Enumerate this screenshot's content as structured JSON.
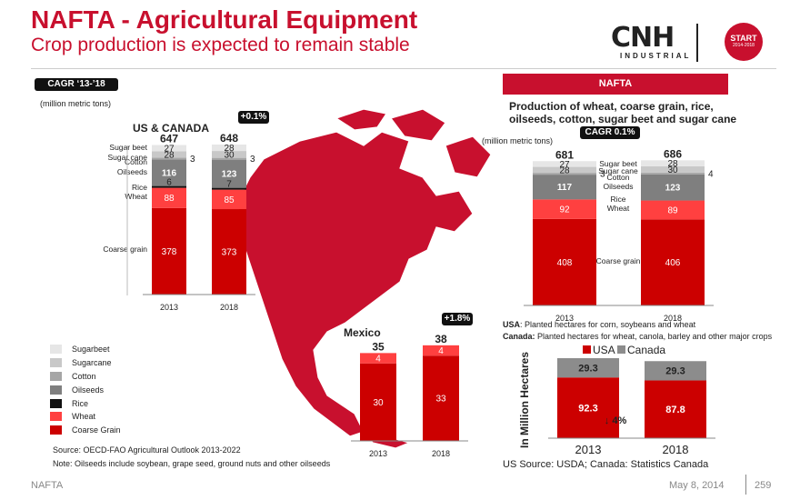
{
  "header": {
    "title": "NAFTA - Agricultural Equipment",
    "subtitle": "Crop production is expected to remain stable",
    "logo_text": "CNH",
    "logo_sub": "INDUSTRIAL",
    "badge_line1": "START",
    "badge_line2": "2014-2018"
  },
  "left": {
    "cagr_pill": "CAGR ‘13-’18",
    "units": "(million metric tons)",
    "growth_pill": "+0.1%",
    "region_title": "US & CANADA"
  },
  "mexico": {
    "growth_pill": "+1.8%",
    "region_title": "Mexico"
  },
  "right": {
    "banner": "NAFTA",
    "title_line1": "Production of wheat, coarse grain, rice,",
    "title_line2": "oilseeds, cotton, sugar beet and sugar cane",
    "cagr_pill": "CAGR 0.1%",
    "units": "(million metric tons)",
    "note_usa_label": "USA",
    "note_usa_text": ":  Planted hectares for corn, soybeans and wheat",
    "note_canada_label": "Canada:",
    "note_canada_text": " Planted hectares for wheat, canola, barley and other major crops",
    "hectares_change": "↓ 4%",
    "hectares_source": "US Source:  USDA; Canada:  Statistics Canada"
  },
  "legend": [
    "Sugarbeet",
    "Sugarcane",
    "Cotton",
    "Oilseeds",
    "Rice",
    "Wheat",
    "Coarse Grain"
  ],
  "sources": {
    "source": "Source: OECD-FAO Agricultural Outlook 2013-2022",
    "note": "Note: Oilseeds include soybean, grape seed, ground nuts and other oilseeds"
  },
  "footer": {
    "left": "NAFTA",
    "date": "May 8, 2014",
    "page": "259"
  },
  "colors": {
    "brand_red": "#c8102e",
    "sugarbeet": "#e6e6e6",
    "sugarcane": "#c8c8c8",
    "cotton": "#a6a6a6",
    "oilseeds": "#7f7f7f",
    "rice": "#111111",
    "wheat": "#ff4040",
    "coarse_grain": "#cc0000",
    "usa": "#cc0000",
    "canada": "#8c8c8c"
  },
  "chart_data": [
    {
      "type": "bar",
      "stacked": true,
      "name": "US & CANADA",
      "categories": [
        "2013",
        "2018"
      ],
      "totals": [
        647,
        648
      ],
      "series": [
        {
          "name": "Coarse grain",
          "values": [
            378,
            373
          ]
        },
        {
          "name": "Wheat",
          "values": [
            88,
            85
          ]
        },
        {
          "name": "Rice",
          "values": [
            6,
            7
          ]
        },
        {
          "name": "Oilseeds",
          "values": [
            116,
            123
          ]
        },
        {
          "name": "Cotton",
          "values": [
            3,
            3
          ]
        },
        {
          "name": "Sugar cane",
          "values": [
            28,
            30
          ]
        },
        {
          "name": "Sugar beet",
          "values": [
            27,
            28
          ]
        }
      ]
    },
    {
      "type": "bar",
      "stacked": true,
      "name": "Mexico",
      "categories": [
        "2013",
        "2018"
      ],
      "totals": [
        35,
        38
      ],
      "series": [
        {
          "name": "Coarse grain",
          "values": [
            30,
            33
          ]
        },
        {
          "name": "Wheat",
          "values": [
            4,
            4
          ]
        }
      ]
    },
    {
      "type": "bar",
      "stacked": true,
      "name": "NAFTA",
      "categories": [
        "2013",
        "2018"
      ],
      "totals": [
        681,
        686
      ],
      "series": [
        {
          "name": "Coarse grain",
          "values": [
            408,
            406
          ]
        },
        {
          "name": "Wheat",
          "values": [
            92,
            89
          ]
        },
        {
          "name": "Rice",
          "values": [
            null,
            null
          ]
        },
        {
          "name": "Oilseeds",
          "values": [
            117,
            123
          ]
        },
        {
          "name": "Cotton",
          "values": [
            3,
            4
          ]
        },
        {
          "name": "Sugar cane",
          "values": [
            28,
            30
          ]
        },
        {
          "name": "Sugar beet",
          "values": [
            27,
            28
          ]
        }
      ]
    },
    {
      "type": "bar",
      "stacked": true,
      "categories": [
        "2013",
        "2018"
      ],
      "ylabel": "In Million Hectares",
      "totals_change": "↓ 4%",
      "series": [
        {
          "name": "USA",
          "values": [
            92.3,
            87.8
          ]
        },
        {
          "name": "Canada",
          "values": [
            29.3,
            29.3
          ]
        }
      ]
    }
  ]
}
